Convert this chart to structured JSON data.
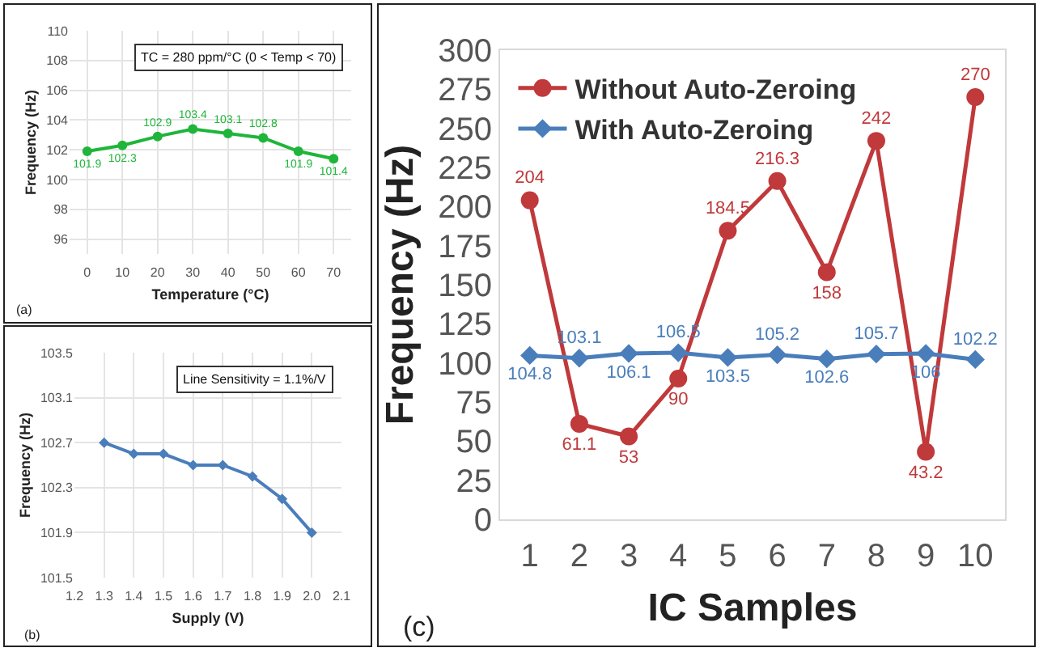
{
  "chart_data": [
    {
      "type": "line",
      "xlabel": "Temperature (°C)",
      "ylabel": "Frequency (Hz)",
      "x": [
        0,
        10,
        20,
        30,
        40,
        50,
        60,
        70
      ],
      "series": [
        {
          "color": "#1fb53a",
          "values": [
            101.9,
            102.3,
            102.9,
            103.4,
            103.1,
            102.8,
            101.9,
            101.4
          ]
        }
      ],
      "xlim": [
        -5,
        75
      ],
      "xticks": [
        0,
        10,
        20,
        30,
        40,
        50,
        60,
        70
      ],
      "ylim": [
        95,
        110
      ],
      "yticks": [
        96,
        98,
        100,
        102,
        104,
        106,
        108,
        110
      ],
      "grid": true,
      "marker": "circle",
      "data_labels": true,
      "annotations": [
        "TC = 280 ppm/°C (0 < Temp < 70)",
        "(a)"
      ]
    },
    {
      "type": "line",
      "xlabel": "Supply (V)",
      "ylabel": "Frequency (Hz)",
      "x": [
        1.3,
        1.4,
        1.5,
        1.6,
        1.7,
        1.8,
        1.9,
        2.0
      ],
      "series": [
        {
          "color": "#4a7ebb",
          "values": [
            102.7,
            102.6,
            102.6,
            102.5,
            102.5,
            102.4,
            102.2,
            101.9
          ]
        }
      ],
      "xlim": [
        1.2,
        2.1
      ],
      "xticks": [
        {
          "value": 1.2,
          "label": "1.2"
        },
        {
          "value": 1.3,
          "label": "1.3"
        },
        {
          "value": 1.4,
          "label": "1.4"
        },
        {
          "value": 1.5,
          "label": "1.5"
        },
        {
          "value": 1.6,
          "label": "1.6"
        },
        {
          "value": 1.7,
          "label": "1.7"
        },
        {
          "value": 1.8,
          "label": "1.8"
        },
        {
          "value": 1.9,
          "label": "1.9"
        },
        {
          "value": 2,
          "label": "2.0"
        },
        {
          "value": 2.1,
          "label": "2.1"
        }
      ],
      "ylim": [
        101.5,
        103.5
      ],
      "yticks": [
        101.5,
        101.9,
        102.3,
        102.7,
        103.1,
        103.5
      ],
      "grid": true,
      "marker": "diamond",
      "annotations": [
        "Line Sensitivity = 1.1%/V",
        "(b)"
      ]
    },
    {
      "type": "line",
      "xlabel": "IC Samples",
      "ylabel": "Frequency (Hz)",
      "categories": [
        "1",
        "2",
        "3",
        "4",
        "5",
        "6",
        "7",
        "8",
        "9",
        "10"
      ],
      "series": [
        {
          "name": "Without Auto-Zeroing",
          "color": "#c0393b",
          "marker": "circle",
          "values": [
            204,
            61.1,
            53,
            90,
            184.5,
            216.3,
            158,
            242,
            43.2,
            270
          ]
        },
        {
          "name": "With Auto-Zeroing",
          "color": "#4a7ebb",
          "marker": "diamond",
          "values": [
            104.8,
            103.1,
            106.1,
            106.5,
            103.5,
            105.2,
            102.6,
            105.7,
            106,
            102.2
          ]
        }
      ],
      "ylim": [
        0,
        300
      ],
      "yticks": [
        0,
        25,
        50,
        75,
        100,
        125,
        150,
        175,
        200,
        225,
        250,
        275,
        300
      ],
      "legend": "top left",
      "data_labels": true,
      "annotations": [
        "(c)"
      ]
    }
  ]
}
